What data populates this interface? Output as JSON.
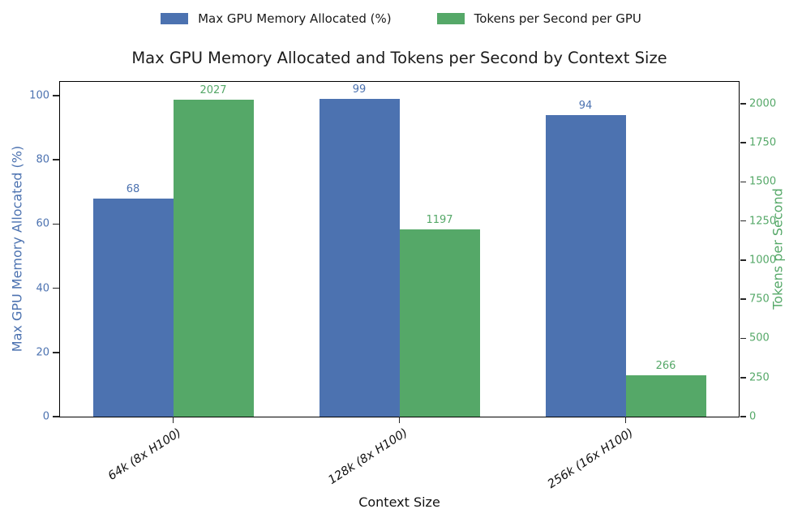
{
  "title": "Max GPU Memory Allocated and Tokens per Second by Context Size",
  "legend": [
    {
      "label": "Max GPU Memory Allocated (%)",
      "color": "#4c72b0"
    },
    {
      "label": "Tokens per Second per GPU",
      "color": "#55a868"
    }
  ],
  "chart_data": {
    "type": "bar",
    "title": "Max GPU Memory Allocated and Tokens per Second by Context Size",
    "categories": [
      "64k (8x H100)",
      "128k (8x H100)",
      "256k (16x H100)"
    ],
    "series": [
      {
        "name": "Max GPU Memory Allocated (%)",
        "axis": "left",
        "color": "#4c72b0",
        "values": [
          68,
          99,
          94
        ]
      },
      {
        "name": "Tokens per Second per GPU",
        "axis": "right",
        "color": "#55a868",
        "values": [
          2027,
          1197,
          266
        ]
      }
    ],
    "xlabel": "Context Size",
    "left_axis": {
      "label": "Max GPU Memory Allocated (%)",
      "color": "#4c72b0",
      "ticks": [
        0,
        20,
        40,
        60,
        80,
        100
      ],
      "max": 104.3
    },
    "right_axis": {
      "label": "Tokens per Second",
      "color": "#55a868",
      "ticks": [
        0,
        250,
        500,
        750,
        1000,
        1250,
        1500,
        1750,
        2000
      ],
      "max": 2139
    },
    "grid": false,
    "legend_position": "top-center",
    "bar_value_labels": true
  }
}
